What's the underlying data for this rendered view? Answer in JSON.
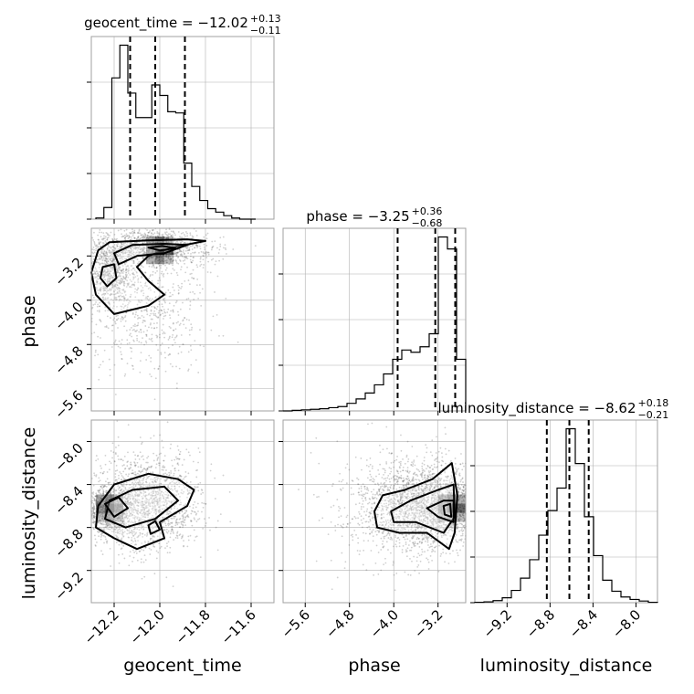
{
  "chart_data": {
    "type": "corner",
    "parameters": [
      {
        "name": "geocent_time",
        "xlabel": "geocent_time",
        "ylabel": "",
        "title": {
          "main": "geocent_time = −12.02",
          "sup": "+0.13",
          "sub": "−0.11"
        },
        "range": [
          -12.3,
          -11.5
        ],
        "ticks": [
          -12.2,
          -12.0,
          -11.8,
          -11.6
        ],
        "tick_labels": [
          "−12.2",
          "−12.0",
          "−11.8",
          "−11.6"
        ],
        "quantile_lines": [
          -12.13,
          -12.02,
          -11.89
        ],
        "histogram": {
          "bin_edges": [
            -12.28,
            -12.245,
            -12.21,
            -12.175,
            -12.14,
            -12.105,
            -12.07,
            -12.035,
            -12.0,
            -11.965,
            -11.93,
            -11.895,
            -11.86,
            -11.825,
            -11.79,
            -11.755,
            -11.72,
            -11.685,
            -11.65,
            -11.615,
            -11.58
          ],
          "counts": [
            1,
            10,
            121,
            149,
            108,
            87,
            87,
            115,
            106,
            92,
            91,
            48,
            28,
            16,
            9,
            6,
            3,
            1,
            0,
            0
          ]
        }
      },
      {
        "name": "phase",
        "xlabel": "phase",
        "ylabel": "phase",
        "title": {
          "main": "phase = −3.25",
          "sup": "+0.36",
          "sub": "−0.68"
        },
        "range": [
          -6.0,
          -2.7
        ],
        "ticks": [
          -5.6,
          -4.8,
          -4.0,
          -3.2
        ],
        "tick_labels": [
          "−5.6",
          "−4.8",
          "−4.0",
          "−3.2"
        ],
        "quantile_lines": [
          -3.93,
          -3.25,
          -2.89
        ],
        "histogram": {
          "bin_edges": [
            -6.0,
            -5.835,
            -5.67,
            -5.505,
            -5.34,
            -5.175,
            -5.01,
            -4.845,
            -4.68,
            -4.515,
            -4.35,
            -4.185,
            -4.02,
            -3.855,
            -3.69,
            -3.525,
            -3.36,
            -3.195,
            -3.03,
            -2.865,
            -2.7
          ],
          "counts": [
            0,
            1,
            2,
            3,
            4,
            6,
            8,
            14,
            22,
            33,
            48,
            68,
            95,
            112,
            108,
            118,
            142,
            320,
            298,
            95
          ]
        }
      },
      {
        "name": "luminosity_distance",
        "xlabel": "luminosity_distance",
        "ylabel": "luminosity_distance",
        "title": {
          "main": "luminosity_distance = −8.62",
          "sup": "+0.18",
          "sub": "−0.21"
        },
        "range": [
          -9.5,
          -7.8
        ],
        "ticks": [
          -9.2,
          -8.8,
          -8.4,
          -8.0
        ],
        "tick_labels": [
          "−9.2",
          "−8.8",
          "−8.4",
          "−8.0"
        ],
        "quantile_lines": [
          -8.83,
          -8.62,
          -8.44
        ],
        "histogram": {
          "bin_edges": [
            -9.5,
            -9.415,
            -9.33,
            -9.245,
            -9.16,
            -9.075,
            -8.99,
            -8.905,
            -8.82,
            -8.735,
            -8.65,
            -8.565,
            -8.48,
            -8.395,
            -8.31,
            -8.225,
            -8.14,
            -8.055,
            -7.97,
            -7.885,
            -7.8
          ],
          "counts": [
            1,
            2,
            5,
            12,
            30,
            60,
            105,
            165,
            225,
            280,
            425,
            340,
            210,
            115,
            55,
            28,
            14,
            8,
            4,
            1
          ]
        }
      }
    ],
    "contour_levels_sigma": [
      0.5,
      1.0,
      1.5,
      2.0
    ],
    "grid": true,
    "colors": {
      "line": "#000000",
      "grid": "#b0b0b0",
      "points": "#555555",
      "frame": "#a0a0a0"
    }
  }
}
